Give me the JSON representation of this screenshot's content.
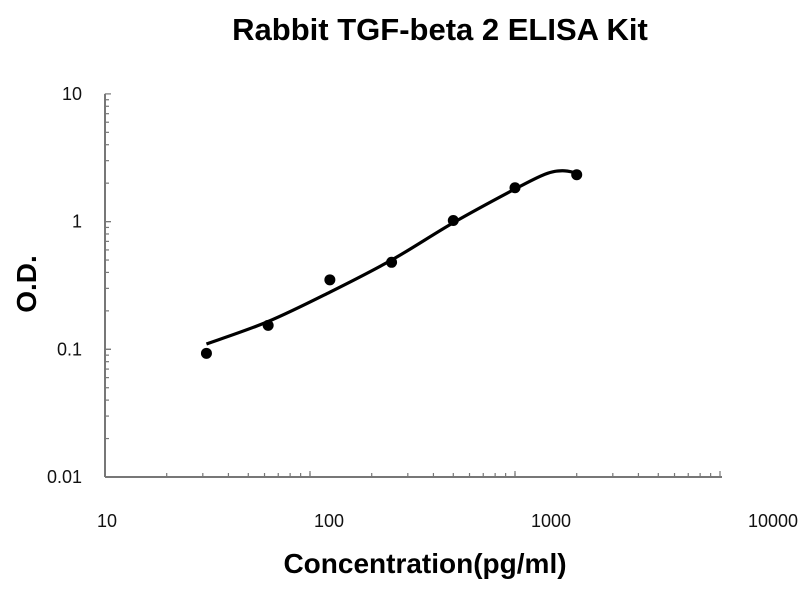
{
  "chart_data": {
    "type": "scatter",
    "title": "Rabbit TGF-beta 2 ELISA Kit",
    "xlabel": "Concentration(pg/ml)",
    "ylabel": "O.D.",
    "xscale": "log",
    "yscale": "log",
    "xlim": [
      10,
      10000
    ],
    "ylim": [
      0.01,
      10
    ],
    "xticks": [
      "10",
      "100",
      "1000",
      "10000"
    ],
    "yticks": [
      "0.01",
      "0.1",
      "1",
      "10"
    ],
    "grid": false,
    "points": {
      "x": [
        31.25,
        62.5,
        125,
        250,
        500,
        1000,
        2000
      ],
      "y": [
        0.093,
        0.154,
        0.35,
        0.48,
        1.02,
        1.84,
        2.33
      ]
    },
    "fit_curve": {
      "x": [
        31.25,
        62.5,
        125,
        250,
        500,
        1000,
        1400,
        1700,
        2000
      ],
      "y": [
        0.11,
        0.165,
        0.28,
        0.5,
        0.98,
        1.8,
        2.35,
        2.5,
        2.4
      ]
    },
    "colors": {
      "marks": "#000000",
      "axis": "#777777"
    }
  }
}
